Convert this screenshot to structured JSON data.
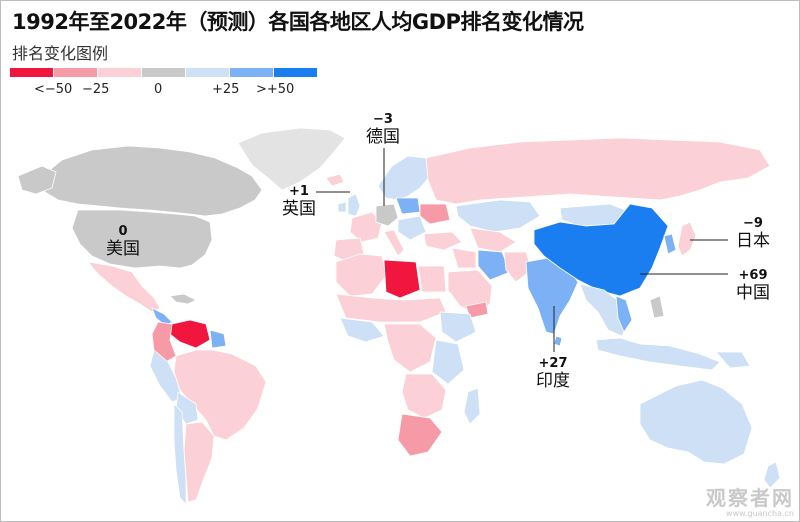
{
  "title": "1992年至2022年（预测）各国各地区人均GDP排名变化情况",
  "legend": {
    "title": "排名变化图例",
    "swatches": [
      "#f0163e",
      "#f59aa6",
      "#fbd1d7",
      "#c9c9c9",
      "#cde0f6",
      "#7cb1f5",
      "#1a7ef0"
    ],
    "labels": [
      "<−50",
      "−25",
      "0",
      "+25",
      ">+50"
    ]
  },
  "colors": {
    "ocean": "#ffffff",
    "greenland": "#e3e3e3",
    "neutral": "#c9c9c9",
    "light_red": "#fbd1d7",
    "mid_red": "#f59aa6",
    "strong_red": "#f0163e",
    "light_blue": "#cde0f6",
    "mid_blue": "#7cb1f5",
    "strong_blue": "#1a7ef0"
  },
  "callouts": [
    {
      "id": "usa",
      "value": "0",
      "name": "美国"
    },
    {
      "id": "germany",
      "value": "−3",
      "name": "德国"
    },
    {
      "id": "uk",
      "value": "+1",
      "name": "英国"
    },
    {
      "id": "japan",
      "value": "−9",
      "name": "日本"
    },
    {
      "id": "china",
      "value": "+69",
      "name": "中国"
    },
    {
      "id": "india",
      "value": "+27",
      "name": "印度"
    }
  ],
  "watermark": {
    "text": "观察者网",
    "url": "www.guancha.cn"
  }
}
